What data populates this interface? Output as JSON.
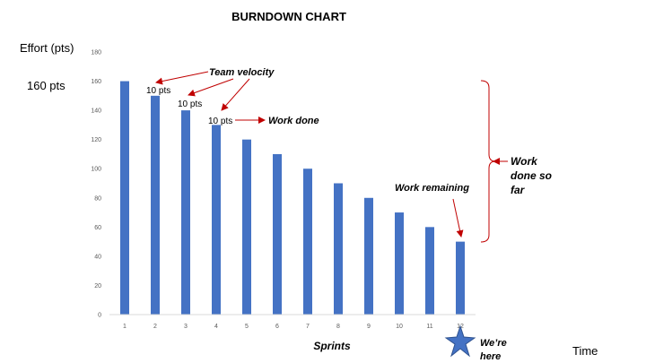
{
  "chart_data": {
    "type": "bar",
    "title": "BURNDOWN CHART",
    "ylabel": "Effort (pts)",
    "xlabel": "Sprints",
    "x_end_label": "Time",
    "start_label": "160 pts",
    "categories": [
      "1",
      "2",
      "3",
      "4",
      "5",
      "6",
      "7",
      "8",
      "9",
      "10",
      "11",
      "12"
    ],
    "values": [
      160,
      150,
      140,
      130,
      120,
      110,
      100,
      90,
      80,
      70,
      60,
      50
    ],
    "ylim": [
      0,
      180
    ],
    "yticks": [
      "0",
      "20",
      "40",
      "60",
      "80",
      "100",
      "120",
      "140",
      "160",
      "180"
    ],
    "bar_color": "#4472C4",
    "annotation_color": "#C00000",
    "annotations": {
      "team_velocity": "Team velocity",
      "step_labels": [
        "10 pts",
        "10 pts",
        "10 pts"
      ],
      "work_done": "Work done",
      "work_remaining": "Work remaining",
      "work_done_so_far": [
        "Work",
        "done so",
        "far"
      ],
      "we_are_here": [
        "We’re",
        "here"
      ]
    },
    "grid": false,
    "legend": "none"
  }
}
